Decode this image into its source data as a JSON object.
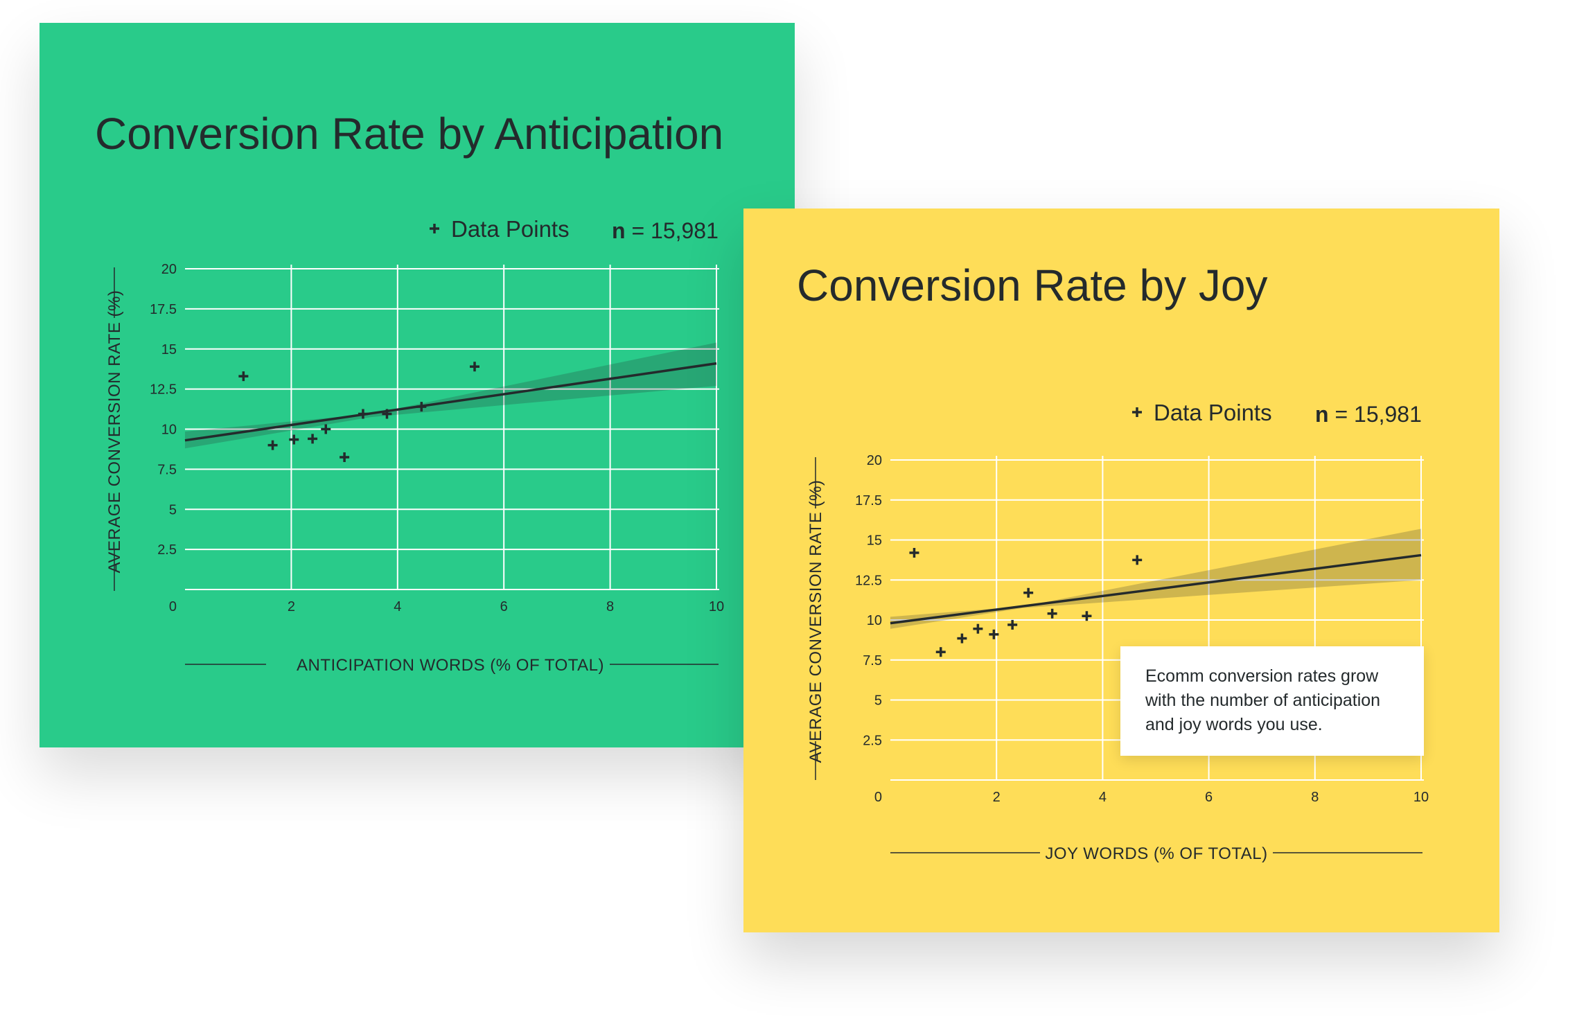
{
  "chart_data": [
    {
      "type": "scatter",
      "title": "Conversion Rate by Anticipation",
      "xlabel": "ANTICIPATION WORDS (% OF TOTAL)",
      "ylabel": "AVERAGE CONVERSION RATE (%)",
      "xlim": [
        0,
        10
      ],
      "ylim": [
        0,
        20
      ],
      "x_ticks": [
        "0",
        "2",
        "4",
        "6",
        "8",
        "10"
      ],
      "y_ticks": [
        "2.5",
        "5",
        "7.5",
        "10",
        "12.5",
        "15",
        "17.5",
        "20"
      ],
      "grid": true,
      "legend": {
        "marker": "+",
        "label": "Data Points",
        "position": "top-right"
      },
      "sample_size": {
        "label": "n",
        "value": "= 15,981"
      },
      "series": [
        {
          "name": "Data Points",
          "points": [
            {
              "x": 1.1,
              "y": 13.3
            },
            {
              "x": 1.65,
              "y": 9.0
            },
            {
              "x": 2.05,
              "y": 9.35
            },
            {
              "x": 2.4,
              "y": 9.4
            },
            {
              "x": 2.65,
              "y": 10.0
            },
            {
              "x": 3.0,
              "y": 8.25
            },
            {
              "x": 3.35,
              "y": 10.95
            },
            {
              "x": 3.8,
              "y": 10.95
            },
            {
              "x": 4.45,
              "y": 11.4
            },
            {
              "x": 5.45,
              "y": 13.9
            }
          ]
        }
      ],
      "trend_line": {
        "start": {
          "x": 0,
          "y": 9.3
        },
        "end": {
          "x": 10,
          "y": 14.1
        }
      },
      "confidence_band": {
        "x": [
          0,
          3.5,
          10
        ],
        "lower": [
          8.8,
          10.75,
          12.7
        ],
        "upper": [
          9.85,
          10.95,
          15.4
        ]
      },
      "colors": {
        "background": "#29cb8a",
        "ink": "#242a2c",
        "grid": "#ffffff"
      }
    },
    {
      "type": "scatter",
      "title": "Conversion Rate by Joy",
      "xlabel": "JOY WORDS (% OF TOTAL)",
      "ylabel": "AVERAGE CONVERSION RATE (%)",
      "xlim": [
        0,
        10
      ],
      "ylim": [
        0,
        20
      ],
      "x_ticks": [
        "0",
        "2",
        "4",
        "6",
        "8",
        "10"
      ],
      "y_ticks": [
        "2.5",
        "5",
        "7.5",
        "10",
        "12.5",
        "15",
        "17.5",
        "20"
      ],
      "grid": true,
      "legend": {
        "marker": "+",
        "label": "Data Points",
        "position": "top-right"
      },
      "sample_size": {
        "label": "n",
        "value": "= 15,981"
      },
      "series": [
        {
          "name": "Data Points",
          "points": [
            {
              "x": 0.45,
              "y": 14.2
            },
            {
              "x": 0.95,
              "y": 8.0
            },
            {
              "x": 1.35,
              "y": 8.85
            },
            {
              "x": 1.65,
              "y": 9.45
            },
            {
              "x": 1.95,
              "y": 9.1
            },
            {
              "x": 2.3,
              "y": 9.7
            },
            {
              "x": 2.6,
              "y": 11.7
            },
            {
              "x": 3.05,
              "y": 10.4
            },
            {
              "x": 3.7,
              "y": 10.25
            },
            {
              "x": 4.65,
              "y": 13.75
            }
          ]
        }
      ],
      "trend_line": {
        "start": {
          "x": 0,
          "y": 9.8
        },
        "end": {
          "x": 10,
          "y": 14.05
        }
      },
      "confidence_band": {
        "x": [
          0,
          2.5,
          10
        ],
        "lower": [
          9.45,
          10.75,
          12.5
        ],
        "upper": [
          10.2,
          10.85,
          15.7
        ]
      },
      "annotation": "Ecomm conversion rates grow with the number of anticipation and joy words you use.",
      "colors": {
        "background": "#fedd58",
        "ink": "#242a2c",
        "grid": "#ffffff"
      }
    }
  ]
}
